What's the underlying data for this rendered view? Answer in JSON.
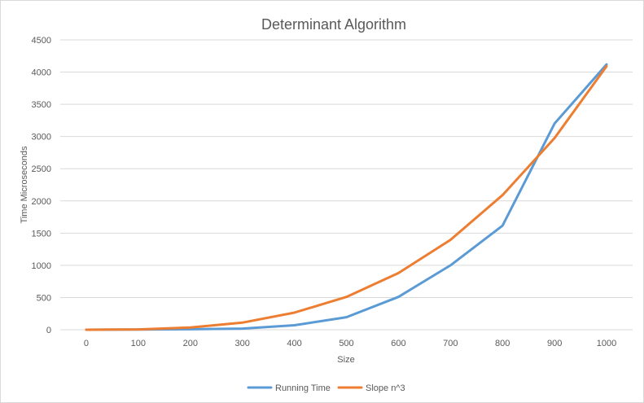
{
  "chart_data": {
    "type": "line",
    "title": "Determinant Algorithm",
    "xlabel": "Size",
    "ylabel": "Time Microseconds",
    "categories": [
      "0",
      "100",
      "200",
      "300",
      "400",
      "500",
      "600",
      "700",
      "800",
      "900",
      "1000"
    ],
    "yticks": [
      "0",
      "500",
      "1000",
      "1500",
      "2000",
      "2500",
      "3000",
      "3500",
      "4000",
      "4500"
    ],
    "ylim": [
      0,
      4500
    ],
    "grid": true,
    "legend_position": "bottom",
    "series": [
      {
        "name": "Running Time",
        "color": "#5b9bd5",
        "values": [
          0,
          2,
          8,
          18,
          70,
          195,
          510,
          1000,
          1615,
          3200,
          4120
        ]
      },
      {
        "name": "Slope n^3",
        "color": "#ed7d31",
        "values": [
          0,
          5,
          35,
          110,
          265,
          510,
          880,
          1395,
          2090,
          2975,
          4090
        ]
      }
    ]
  }
}
